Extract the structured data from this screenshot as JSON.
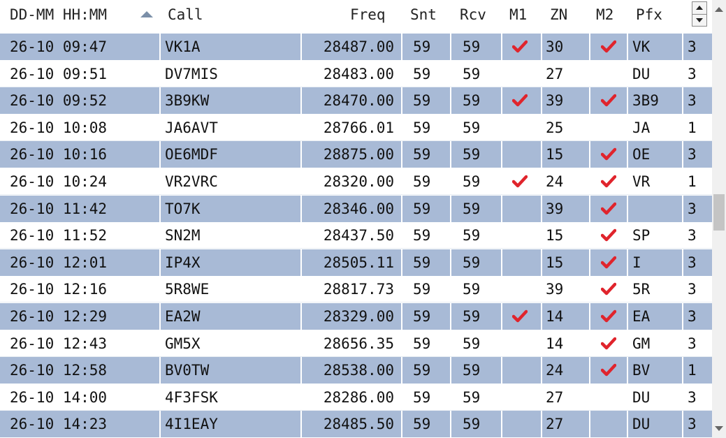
{
  "columns": {
    "datetime": "DD-MM HH:MM",
    "call": "Call",
    "freq": "Freq",
    "snt": "Snt",
    "rcv": "Rcv",
    "m1": "M1",
    "zn": "ZN",
    "m2": "M2",
    "pfx": "Pfx"
  },
  "colors": {
    "row_alt": "#a8bad6",
    "check": "#e0242c"
  },
  "rows": [
    {
      "datetime": "26-10 09:47",
      "call": "VK1A",
      "freq": "28487.00",
      "snt": "59",
      "rcv": "59",
      "m1": true,
      "zn": "30",
      "m2": true,
      "pfx": "VK",
      "n": "3"
    },
    {
      "datetime": "26-10 09:51",
      "call": "DV7MIS",
      "freq": "28483.00",
      "snt": "59",
      "rcv": "59",
      "m1": false,
      "zn": "27",
      "m2": false,
      "pfx": "DU",
      "n": "3"
    },
    {
      "datetime": "26-10 09:52",
      "call": "3B9KW",
      "freq": "28470.00",
      "snt": "59",
      "rcv": "59",
      "m1": true,
      "zn": "39",
      "m2": true,
      "pfx": "3B9",
      "n": "3"
    },
    {
      "datetime": "26-10 10:08",
      "call": "JA6AVT",
      "freq": "28766.01",
      "snt": "59",
      "rcv": "59",
      "m1": false,
      "zn": "25",
      "m2": false,
      "pfx": "JA",
      "n": "1"
    },
    {
      "datetime": "26-10 10:16",
      "call": "OE6MDF",
      "freq": "28875.00",
      "snt": "59",
      "rcv": "59",
      "m1": false,
      "zn": "15",
      "m2": true,
      "pfx": "OE",
      "n": "3"
    },
    {
      "datetime": "26-10 10:24",
      "call": "VR2VRC",
      "freq": "28320.00",
      "snt": "59",
      "rcv": "59",
      "m1": true,
      "zn": "24",
      "m2": true,
      "pfx": "VR",
      "n": "1"
    },
    {
      "datetime": "26-10 11:42",
      "call": "TO7K",
      "freq": "28346.00",
      "snt": "59",
      "rcv": "59",
      "m1": false,
      "zn": "39",
      "m2": true,
      "pfx": "",
      "n": "3"
    },
    {
      "datetime": "26-10 11:52",
      "call": "SN2M",
      "freq": "28437.50",
      "snt": "59",
      "rcv": "59",
      "m1": false,
      "zn": "15",
      "m2": true,
      "pfx": "SP",
      "n": "3"
    },
    {
      "datetime": "26-10 12:01",
      "call": "IP4X",
      "freq": "28505.11",
      "snt": "59",
      "rcv": "59",
      "m1": false,
      "zn": "15",
      "m2": true,
      "pfx": "I",
      "n": "3"
    },
    {
      "datetime": "26-10 12:16",
      "call": "5R8WE",
      "freq": "28817.73",
      "snt": "59",
      "rcv": "59",
      "m1": false,
      "zn": "39",
      "m2": true,
      "pfx": "5R",
      "n": "3"
    },
    {
      "datetime": "26-10 12:29",
      "call": "EA2W",
      "freq": "28329.00",
      "snt": "59",
      "rcv": "59",
      "m1": true,
      "zn": "14",
      "m2": true,
      "pfx": "EA",
      "n": "3"
    },
    {
      "datetime": "26-10 12:43",
      "call": "GM5X",
      "freq": "28656.35",
      "snt": "59",
      "rcv": "59",
      "m1": false,
      "zn": "14",
      "m2": true,
      "pfx": "GM",
      "n": "3"
    },
    {
      "datetime": "26-10 12:58",
      "call": "BV0TW",
      "freq": "28538.00",
      "snt": "59",
      "rcv": "59",
      "m1": false,
      "zn": "24",
      "m2": true,
      "pfx": "BV",
      "n": "1"
    },
    {
      "datetime": "26-10 14:00",
      "call": "4F3FSK",
      "freq": "28286.00",
      "snt": "59",
      "rcv": "59",
      "m1": false,
      "zn": "27",
      "m2": false,
      "pfx": "DU",
      "n": "3"
    },
    {
      "datetime": "26-10 14:23",
      "call": "4I1EAY",
      "freq": "28485.50",
      "snt": "59",
      "rcv": "59",
      "m1": false,
      "zn": "27",
      "m2": false,
      "pfx": "DU",
      "n": "3"
    }
  ]
}
